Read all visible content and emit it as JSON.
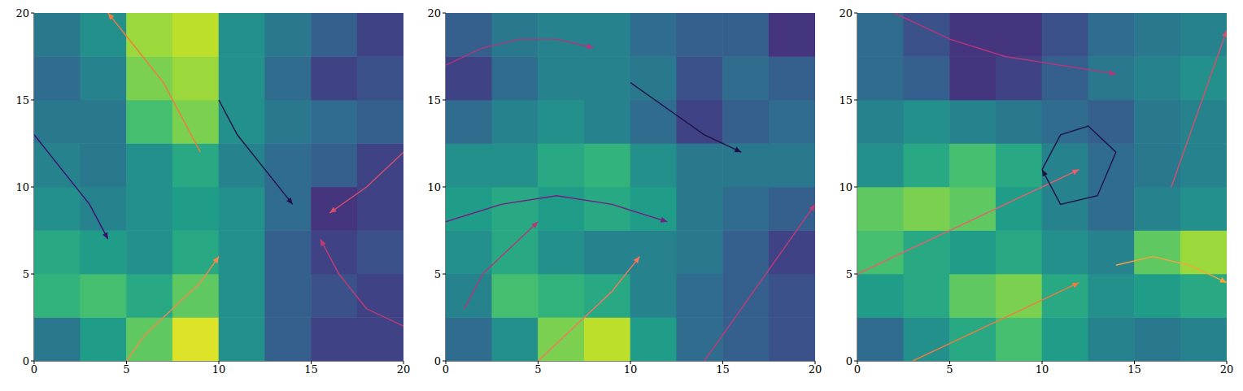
{
  "chart_data": [
    {
      "type": "heatmap",
      "xlim": [
        0,
        20
      ],
      "ylim": [
        0,
        20
      ],
      "xticks": [
        0,
        5,
        10,
        15,
        20
      ],
      "yticks": [
        0,
        5,
        10,
        15,
        20
      ],
      "grid": false,
      "marker": "arrow",
      "heatmap": {
        "x_edges": [
          0,
          2.5,
          5,
          7.5,
          10,
          12.5,
          15,
          17.5,
          20
        ],
        "y_edges": [
          0,
          2.5,
          5,
          7.5,
          10,
          12.5,
          15,
          17.5,
          20
        ],
        "color": "viridis",
        "clim": [
          0,
          1
        ],
        "values": [
          [
            0.4,
            0.55,
            0.75,
            0.95,
            0.5,
            0.3,
            0.2,
            0.2
          ],
          [
            0.65,
            0.7,
            0.6,
            0.75,
            0.5,
            0.3,
            0.25,
            0.2
          ],
          [
            0.6,
            0.55,
            0.5,
            0.6,
            0.5,
            0.3,
            0.2,
            0.25
          ],
          [
            0.5,
            0.45,
            0.5,
            0.55,
            0.5,
            0.35,
            0.15,
            0.2
          ],
          [
            0.45,
            0.4,
            0.5,
            0.6,
            0.45,
            0.35,
            0.3,
            0.2
          ],
          [
            0.4,
            0.4,
            0.7,
            0.8,
            0.5,
            0.4,
            0.35,
            0.3
          ],
          [
            0.35,
            0.45,
            0.8,
            0.85,
            0.5,
            0.35,
            0.2,
            0.25
          ],
          [
            0.4,
            0.5,
            0.85,
            0.9,
            0.5,
            0.4,
            0.3,
            0.2
          ]
        ]
      },
      "series": [
        {
          "color": "#f07b3f",
          "x": [
            9,
            8,
            7,
            5.5,
            4
          ],
          "y": [
            12,
            14,
            16,
            18,
            20
          ]
        },
        {
          "color": "#f48849",
          "x": [
            5,
            6,
            7.5,
            9,
            10
          ],
          "y": [
            0,
            1.5,
            3,
            4.5,
            6
          ]
        },
        {
          "color": "#c23b75",
          "x": [
            20,
            18,
            16.5,
            15.5
          ],
          "y": [
            2,
            3,
            5,
            7
          ]
        },
        {
          "color": "#d4506a",
          "x": [
            20,
            18,
            16
          ],
          "y": [
            12,
            10,
            8.5
          ]
        },
        {
          "color": "#1d1147",
          "x": [
            10,
            11,
            12.5,
            14
          ],
          "y": [
            15,
            13,
            11,
            9
          ]
        },
        {
          "color": "#3b0f70",
          "x": [
            0,
            1.5,
            3,
            4
          ],
          "y": [
            13,
            11,
            9,
            7
          ]
        }
      ]
    },
    {
      "type": "heatmap",
      "xlim": [
        0,
        20
      ],
      "ylim": [
        0,
        20
      ],
      "xticks": [
        0,
        5,
        10,
        15,
        20
      ],
      "yticks": [
        0,
        5,
        10,
        15,
        20
      ],
      "grid": false,
      "marker": "arrow",
      "heatmap": {
        "x_edges": [
          0,
          2.5,
          5,
          7.5,
          10,
          12.5,
          15,
          17.5,
          20
        ],
        "y_edges": [
          0,
          2.5,
          5,
          7.5,
          10,
          12.5,
          15,
          17.5,
          20
        ],
        "color": "viridis",
        "clim": [
          0,
          1
        ],
        "values": [
          [
            0.35,
            0.5,
            0.8,
            0.9,
            0.55,
            0.35,
            0.3,
            0.25
          ],
          [
            0.45,
            0.7,
            0.65,
            0.6,
            0.45,
            0.35,
            0.3,
            0.25
          ],
          [
            0.5,
            0.6,
            0.5,
            0.45,
            0.45,
            0.4,
            0.3,
            0.2
          ],
          [
            0.55,
            0.6,
            0.55,
            0.6,
            0.55,
            0.4,
            0.35,
            0.3
          ],
          [
            0.5,
            0.5,
            0.6,
            0.65,
            0.5,
            0.4,
            0.4,
            0.4
          ],
          [
            0.35,
            0.45,
            0.5,
            0.45,
            0.35,
            0.2,
            0.3,
            0.35
          ],
          [
            0.2,
            0.35,
            0.45,
            0.45,
            0.4,
            0.25,
            0.35,
            0.3
          ],
          [
            0.3,
            0.4,
            0.45,
            0.45,
            0.35,
            0.3,
            0.3,
            0.15
          ]
        ]
      },
      "series": [
        {
          "color": "#f8765c",
          "x": [
            5,
            7,
            9,
            10.5
          ],
          "y": [
            0,
            2,
            4,
            6
          ]
        },
        {
          "color": "#b5367a",
          "x": [
            0,
            2,
            4,
            6,
            8
          ],
          "y": [
            17,
            18,
            18.5,
            18.5,
            18
          ]
        },
        {
          "color": "#721f81",
          "x": [
            0,
            3,
            6,
            9,
            12
          ],
          "y": [
            8,
            9,
            9.5,
            9,
            8
          ]
        },
        {
          "color": "#c23b75",
          "x": [
            14,
            16,
            18,
            20
          ],
          "y": [
            0,
            3,
            6,
            9
          ]
        },
        {
          "color": "#1d1147",
          "x": [
            10,
            12,
            14,
            16
          ],
          "y": [
            16,
            14.5,
            13,
            12
          ]
        },
        {
          "color": "#b73779",
          "x": [
            1,
            2,
            3,
            5
          ],
          "y": [
            3,
            5,
            6,
            8
          ]
        }
      ]
    },
    {
      "type": "heatmap",
      "xlim": [
        0,
        20
      ],
      "ylim": [
        0,
        20
      ],
      "xticks": [
        0,
        5,
        10,
        15,
        20
      ],
      "yticks": [
        0,
        5,
        10,
        15,
        20
      ],
      "grid": false,
      "marker": "arrow",
      "heatmap": {
        "x_edges": [
          0,
          2.5,
          5,
          7.5,
          10,
          12.5,
          15,
          17.5,
          20
        ],
        "y_edges": [
          0,
          2.5,
          5,
          7.5,
          10,
          12.5,
          15,
          17.5,
          20
        ],
        "color": "viridis",
        "clim": [
          0,
          1
        ],
        "values": [
          [
            0.35,
            0.5,
            0.6,
            0.7,
            0.55,
            0.45,
            0.4,
            0.45
          ],
          [
            0.55,
            0.6,
            0.75,
            0.8,
            0.6,
            0.5,
            0.55,
            0.6
          ],
          [
            0.7,
            0.6,
            0.55,
            0.6,
            0.5,
            0.45,
            0.75,
            0.85
          ],
          [
            0.75,
            0.8,
            0.75,
            0.55,
            0.45,
            0.35,
            0.45,
            0.5
          ],
          [
            0.5,
            0.6,
            0.7,
            0.6,
            0.45,
            0.35,
            0.4,
            0.45
          ],
          [
            0.45,
            0.5,
            0.45,
            0.4,
            0.35,
            0.3,
            0.4,
            0.45
          ],
          [
            0.35,
            0.3,
            0.15,
            0.2,
            0.3,
            0.4,
            0.45,
            0.5
          ],
          [
            0.35,
            0.25,
            0.15,
            0.15,
            0.25,
            0.35,
            0.4,
            0.45
          ]
        ]
      },
      "series": [
        {
          "color": "#e8606a",
          "x": [
            0,
            3,
            6,
            9,
            12
          ],
          "y": [
            5,
            6.5,
            8,
            9.5,
            11
          ]
        },
        {
          "color": "#f07b3f",
          "x": [
            3,
            6,
            9,
            12
          ],
          "y": [
            0,
            1.5,
            3,
            4.5
          ]
        },
        {
          "color": "#fba238",
          "x": [
            14,
            16,
            18,
            20
          ],
          "y": [
            5.5,
            6,
            5.5,
            4.5
          ]
        },
        {
          "color": "#b5367a",
          "x": [
            2,
            5,
            8,
            11,
            14
          ],
          "y": [
            20,
            18.5,
            17.5,
            17,
            16.5
          ]
        },
        {
          "color": "#d4506a",
          "x": [
            17,
            18,
            19,
            20
          ],
          "y": [
            10,
            13,
            16,
            19
          ]
        },
        {
          "color": "#1d1147",
          "x": [
            10,
            11,
            12.5,
            14,
            13,
            11,
            10
          ],
          "y": [
            11,
            13,
            13.5,
            12,
            9.5,
            9,
            11
          ]
        }
      ]
    }
  ]
}
